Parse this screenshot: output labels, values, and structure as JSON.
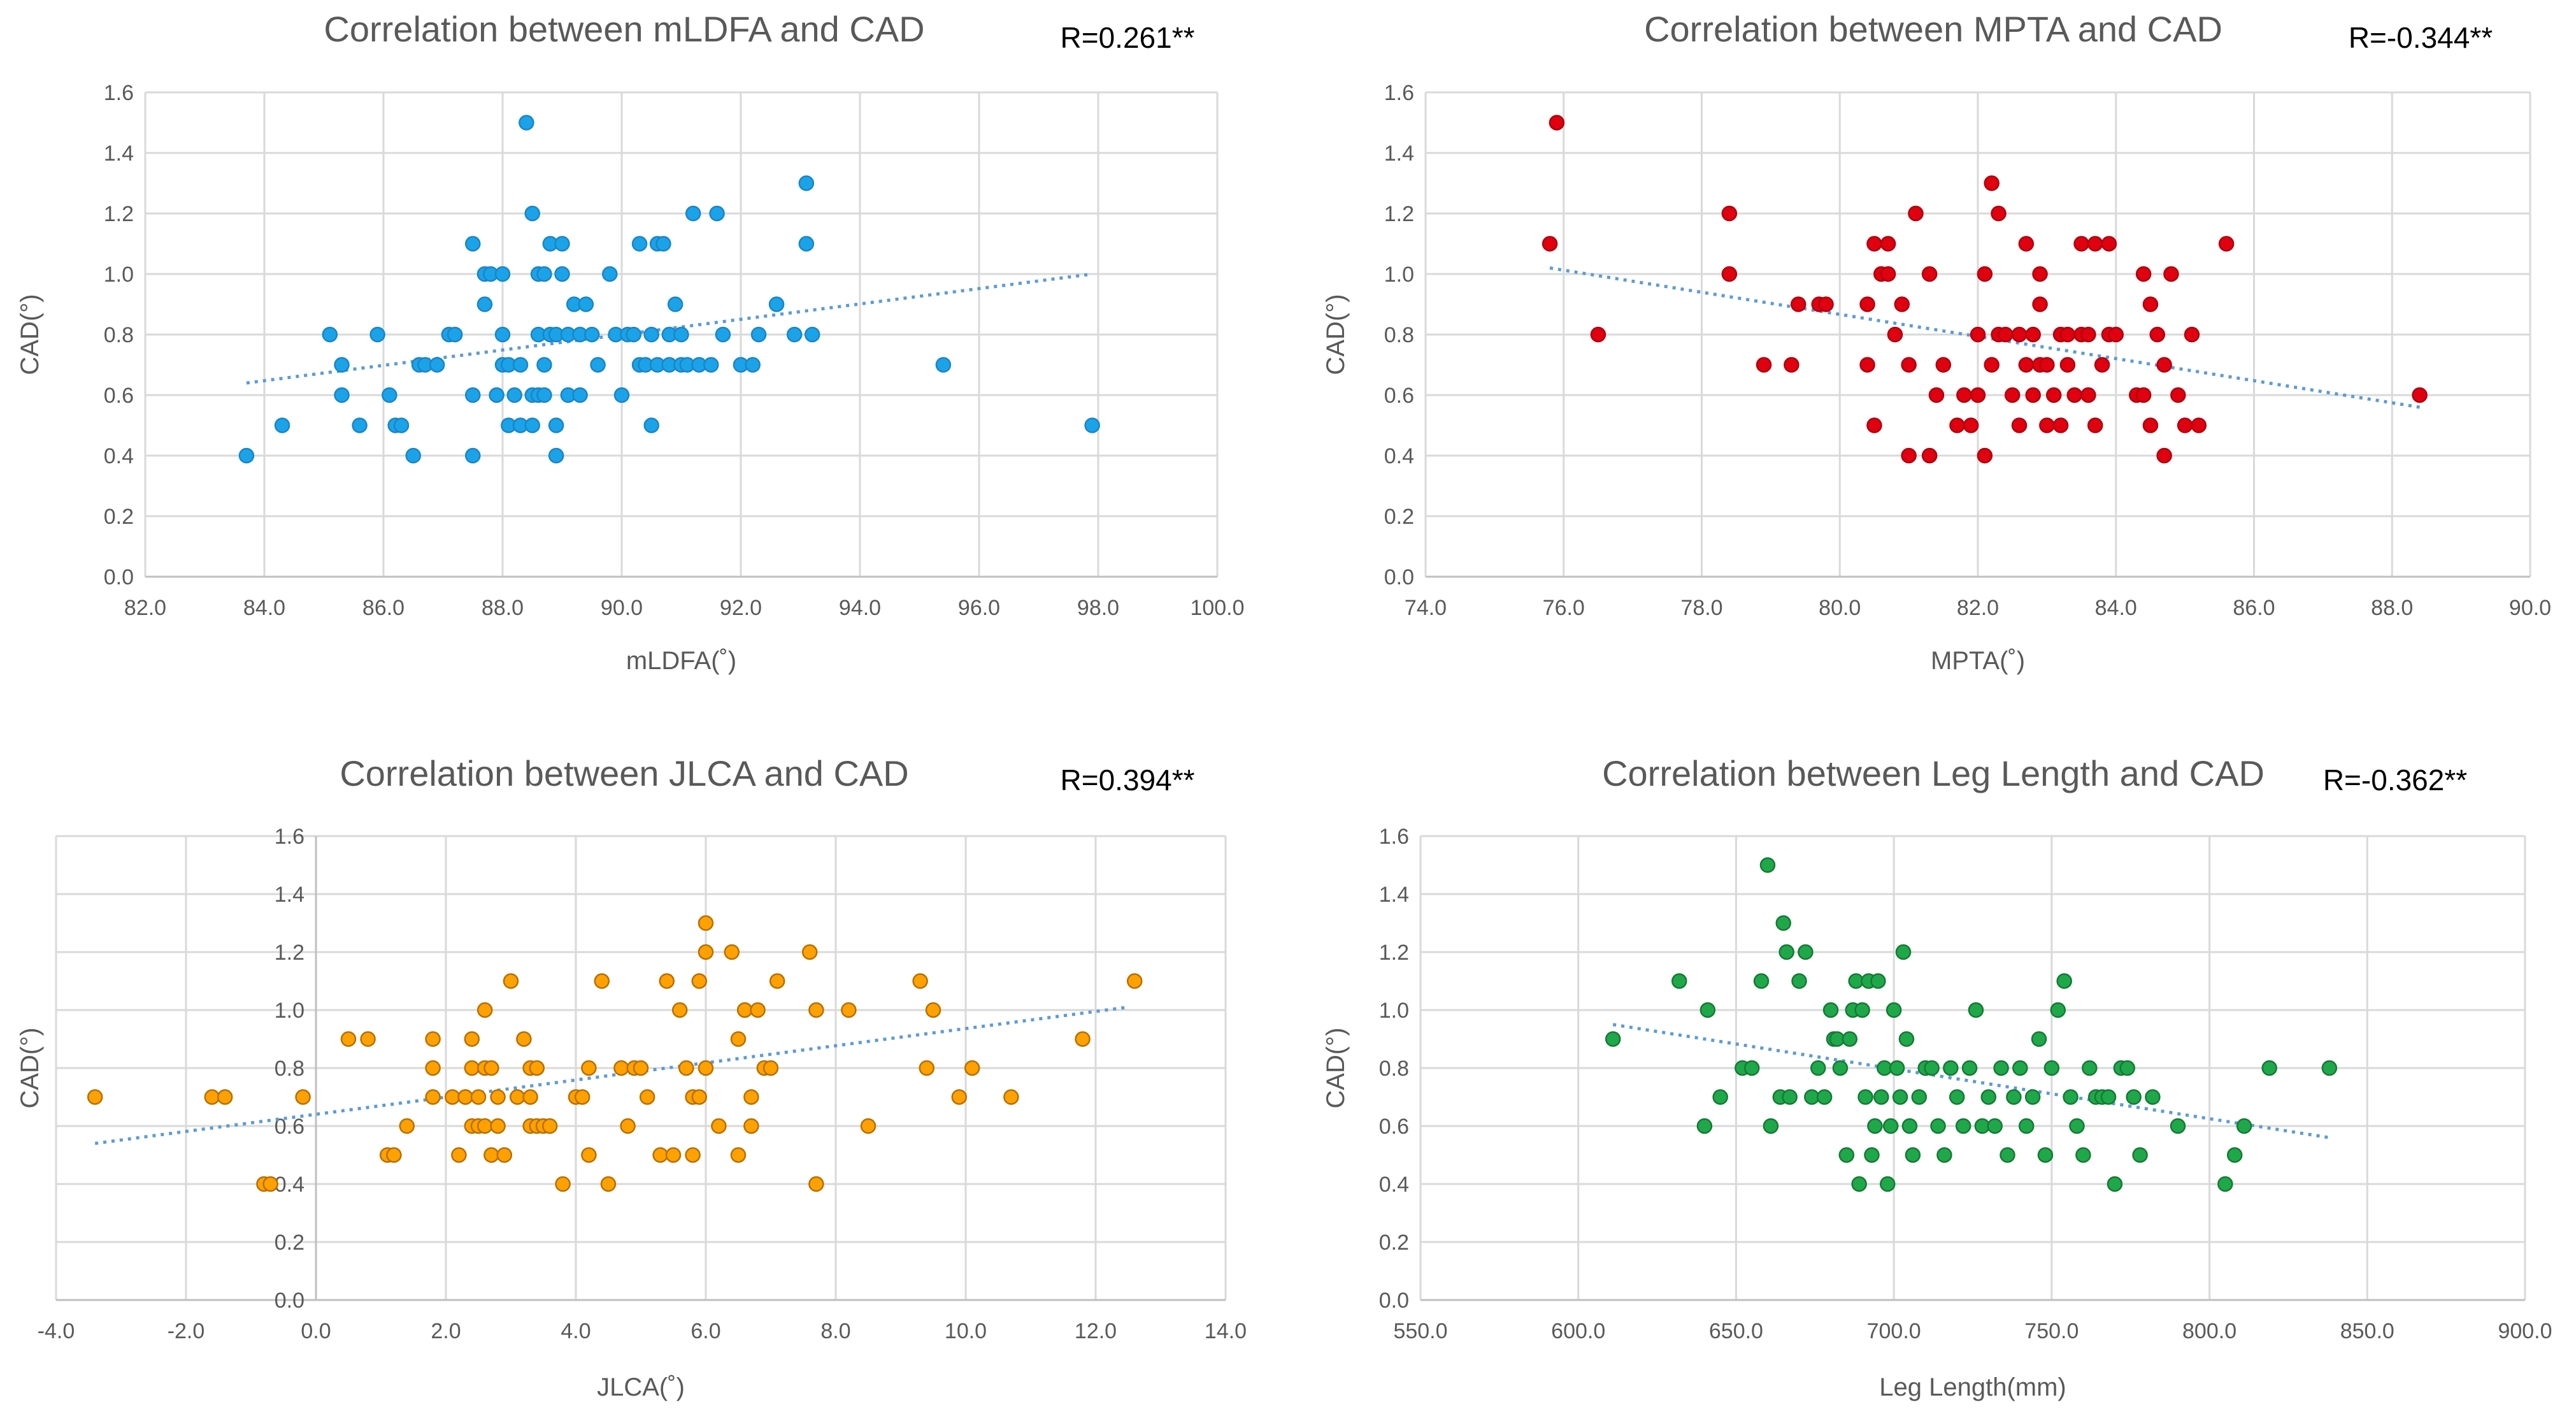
{
  "chart_data": [
    {
      "type": "scatter",
      "title": "Correlation between mLDFA and CAD",
      "annotation": "R=0.261**",
      "xlabel": "mLDFA(˚)",
      "ylabel": "CAD(°)",
      "xlim": [
        82,
        100
      ],
      "xstep": 2,
      "ylim": [
        0,
        1.6
      ],
      "ystep": 0.2,
      "xticks": [
        "82.0",
        "84.0",
        "86.0",
        "88.0",
        "90.0",
        "92.0",
        "94.0",
        "96.0",
        "98.0",
        "100.0"
      ],
      "yticks": [
        "0.0",
        "0.2",
        "0.4",
        "0.6",
        "0.8",
        "1.0",
        "1.2",
        "1.4",
        "1.6"
      ],
      "color": "#1aa3e8",
      "edge": "#1a85c8",
      "trendline": [
        [
          83.7,
          0.64
        ],
        [
          97.9,
          1.0
        ]
      ],
      "x": [
        83.7,
        84.3,
        85.1,
        85.3,
        85.3,
        85.6,
        85.9,
        86.1,
        86.2,
        86.3,
        86.5,
        86.6,
        86.7,
        86.9,
        87.1,
        87.2,
        87.5,
        87.5,
        87.5,
        87.7,
        87.7,
        87.8,
        87.9,
        88.0,
        88.0,
        88.0,
        88.1,
        88.1,
        88.2,
        88.3,
        88.3,
        88.4,
        88.5,
        88.5,
        88.5,
        88.6,
        88.6,
        88.6,
        88.7,
        88.7,
        88.7,
        88.8,
        88.8,
        88.9,
        88.9,
        88.9,
        89.0,
        89.0,
        89.1,
        89.1,
        89.2,
        89.3,
        89.3,
        89.4,
        89.5,
        89.6,
        89.8,
        89.9,
        90.0,
        90.1,
        90.2,
        90.3,
        90.3,
        90.4,
        90.5,
        90.5,
        90.6,
        90.6,
        90.7,
        90.8,
        90.8,
        90.9,
        91.0,
        91.0,
        91.1,
        91.2,
        91.3,
        91.5,
        91.6,
        91.7,
        92.0,
        92.2,
        92.3,
        92.6,
        92.9,
        93.1,
        93.1,
        93.2,
        95.4,
        97.9
      ],
      "y": [
        0.4,
        0.5,
        0.8,
        0.7,
        0.6,
        0.5,
        0.8,
        0.6,
        0.5,
        0.5,
        0.4,
        0.7,
        0.7,
        0.7,
        0.8,
        0.8,
        1.1,
        0.6,
        0.4,
        1.0,
        0.9,
        1.0,
        0.6,
        0.8,
        1.0,
        0.7,
        0.5,
        0.7,
        0.6,
        0.7,
        0.5,
        1.5,
        1.2,
        0.6,
        0.5,
        1.0,
        0.8,
        0.6,
        1.0,
        0.7,
        0.6,
        1.1,
        0.8,
        0.5,
        0.4,
        0.8,
        1.1,
        1.0,
        0.8,
        0.6,
        0.9,
        0.8,
        0.6,
        0.9,
        0.8,
        0.7,
        1.0,
        0.8,
        0.6,
        0.8,
        0.8,
        1.1,
        0.7,
        0.7,
        0.8,
        0.5,
        1.1,
        0.7,
        1.1,
        0.7,
        0.8,
        0.9,
        0.7,
        0.8,
        0.7,
        1.2,
        0.7,
        0.7,
        1.2,
        0.8,
        0.7,
        0.7,
        0.8,
        0.9,
        0.8,
        1.3,
        1.1,
        0.8,
        0.7,
        0.5
      ]
    },
    {
      "type": "scatter",
      "title": "Correlation between MPTA and CAD",
      "annotation": "R=-0.344**",
      "xlabel": "MPTA(˚)",
      "ylabel": "CAD(°)",
      "xlim": [
        74,
        90
      ],
      "xstep": 2,
      "ylim": [
        0,
        1.6
      ],
      "ystep": 0.2,
      "xticks": [
        "74.0",
        "76.0",
        "78.0",
        "80.0",
        "82.0",
        "84.0",
        "86.0",
        "88.0",
        "90.0"
      ],
      "yticks": [
        "0.0",
        "0.2",
        "0.4",
        "0.6",
        "0.8",
        "1.0",
        "1.2",
        "1.4",
        "1.6"
      ],
      "color": "#e0000f",
      "edge": "#b0000c",
      "trendline": [
        [
          75.8,
          1.02
        ],
        [
          88.4,
          0.56
        ]
      ],
      "x": [
        75.8,
        75.9,
        76.5,
        78.4,
        78.4,
        78.9,
        79.3,
        79.4,
        79.7,
        79.8,
        80.4,
        80.4,
        80.5,
        80.5,
        80.6,
        80.7,
        80.7,
        80.8,
        80.9,
        81.0,
        81.0,
        81.1,
        81.3,
        81.3,
        81.4,
        81.5,
        81.7,
        81.8,
        81.9,
        82.0,
        82.0,
        82.1,
        82.1,
        82.2,
        82.2,
        82.3,
        82.3,
        82.4,
        82.5,
        82.6,
        82.6,
        82.7,
        82.7,
        82.8,
        82.8,
        82.9,
        82.9,
        82.9,
        83.0,
        83.0,
        83.1,
        83.2,
        83.2,
        83.3,
        83.3,
        83.4,
        83.5,
        83.5,
        83.6,
        83.6,
        83.7,
        83.7,
        83.8,
        83.9,
        83.9,
        84.0,
        84.3,
        84.4,
        84.4,
        84.5,
        84.5,
        84.6,
        84.7,
        84.7,
        84.8,
        84.9,
        85.0,
        85.1,
        85.2,
        85.6,
        88.4
      ],
      "y": [
        1.1,
        1.5,
        0.8,
        1.2,
        1.0,
        0.7,
        0.7,
        0.9,
        0.9,
        0.9,
        0.9,
        0.7,
        1.1,
        0.5,
        1.0,
        1.1,
        1.0,
        0.8,
        0.9,
        0.4,
        0.7,
        1.2,
        0.4,
        1.0,
        0.6,
        0.7,
        0.5,
        0.6,
        0.5,
        0.6,
        0.8,
        0.4,
        1.0,
        1.3,
        0.7,
        0.8,
        1.2,
        0.8,
        0.6,
        0.8,
        0.5,
        0.7,
        1.1,
        0.8,
        0.6,
        0.7,
        1.0,
        0.9,
        0.7,
        0.5,
        0.6,
        0.8,
        0.5,
        0.7,
        0.8,
        0.6,
        0.8,
        1.1,
        0.6,
        0.8,
        1.1,
        0.5,
        0.7,
        0.8,
        1.1,
        0.8,
        0.6,
        0.6,
        1.0,
        0.9,
        0.5,
        0.8,
        0.4,
        0.7,
        1.0,
        0.6,
        0.5,
        0.8,
        0.5,
        1.1,
        0.6
      ]
    },
    {
      "type": "scatter",
      "title": "Correlation between JLCA and CAD",
      "annotation": "R=0.394**",
      "xlabel": "JLCA(˚)",
      "ylabel": "CAD(°)",
      "xlim": [
        -4,
        14
      ],
      "xstep": 2,
      "ylim": [
        0,
        1.6
      ],
      "ystep": 0.2,
      "xticks": [
        "-4.0",
        "-2.0",
        "0.0",
        "2.0",
        "4.0",
        "6.0",
        "8.0",
        "10.0",
        "12.0",
        "14.0"
      ],
      "yticks": [
        "0.0",
        "0.2",
        "0.4",
        "0.6",
        "0.8",
        "1.0",
        "1.2",
        "1.4",
        "1.6"
      ],
      "color": "#ffa100",
      "edge": "#b86f00",
      "trendline": [
        [
          -3.4,
          0.54
        ],
        [
          12.5,
          1.01
        ]
      ],
      "x": [
        -3.4,
        -1.6,
        -1.4,
        -0.8,
        -0.7,
        -0.2,
        0.5,
        0.8,
        1.1,
        1.2,
        1.4,
        1.8,
        1.8,
        1.8,
        2.1,
        2.2,
        2.3,
        2.3,
        2.4,
        2.4,
        2.4,
        2.5,
        2.5,
        2.6,
        2.6,
        2.6,
        2.7,
        2.7,
        2.8,
        2.8,
        2.9,
        3.0,
        3.1,
        3.2,
        3.3,
        3.3,
        3.3,
        3.4,
        3.4,
        3.5,
        3.6,
        3.8,
        4.0,
        4.1,
        4.2,
        4.2,
        4.4,
        4.5,
        4.7,
        4.8,
        4.9,
        5.0,
        5.1,
        5.3,
        5.4,
        5.5,
        5.6,
        5.7,
        5.8,
        5.8,
        5.9,
        5.9,
        6.0,
        6.0,
        6.0,
        6.2,
        6.4,
        6.5,
        6.5,
        6.6,
        6.6,
        6.7,
        6.7,
        6.8,
        6.9,
        7.0,
        7.1,
        7.6,
        7.7,
        7.7,
        8.2,
        8.5,
        9.3,
        9.4,
        9.5,
        9.9,
        10.1,
        10.7,
        11.8,
        12.6
      ],
      "y": [
        0.7,
        0.7,
        0.7,
        0.4,
        0.4,
        0.7,
        0.9,
        0.9,
        0.5,
        0.5,
        0.6,
        0.9,
        0.8,
        0.7,
        0.7,
        0.5,
        0.7,
        0.7,
        0.8,
        0.9,
        0.6,
        0.7,
        0.6,
        1.0,
        0.8,
        0.6,
        0.8,
        0.5,
        0.7,
        0.6,
        0.5,
        1.1,
        0.7,
        0.9,
        0.7,
        0.6,
        0.8,
        0.8,
        0.6,
        0.6,
        0.6,
        0.4,
        0.7,
        0.7,
        0.5,
        0.8,
        1.1,
        0.4,
        0.8,
        0.6,
        0.8,
        0.8,
        0.7,
        0.5,
        1.1,
        0.5,
        1.0,
        0.8,
        0.7,
        0.5,
        1.1,
        0.7,
        1.3,
        1.2,
        0.8,
        0.6,
        1.2,
        0.5,
        0.9,
        1.0,
        1.0,
        0.7,
        0.6,
        1.0,
        0.8,
        0.8,
        1.1,
        1.2,
        1.0,
        0.4,
        1.0,
        0.6,
        1.1,
        0.8,
        1.0,
        0.7,
        0.8,
        0.7,
        0.9,
        1.1
      ]
    },
    {
      "type": "scatter",
      "title": "Correlation between Leg Length and CAD",
      "annotation": "R=-0.362**",
      "xlabel": "Leg Length(mm)",
      "ylabel": "CAD(°)",
      "xlim": [
        550,
        900
      ],
      "xstep": 50,
      "ylim": [
        0,
        1.6
      ],
      "ystep": 0.2,
      "xticks": [
        "550.0",
        "600.0",
        "650.0",
        "700.0",
        "750.0",
        "800.0",
        "850.0",
        "900.0"
      ],
      "yticks": [
        "0.0",
        "0.2",
        "0.4",
        "0.6",
        "0.8",
        "1.0",
        "1.2",
        "1.4",
        "1.6"
      ],
      "color": "#1fa84a",
      "edge": "#157a34",
      "trendline": [
        [
          611,
          0.95
        ],
        [
          838,
          0.56
        ]
      ],
      "x": [
        611,
        632,
        640,
        641,
        645,
        652,
        655,
        658,
        660,
        661,
        664,
        665,
        666,
        667,
        670,
        672,
        674,
        676,
        678,
        680,
        681,
        682,
        683,
        685,
        686,
        687,
        688,
        689,
        690,
        691,
        692,
        693,
        694,
        695,
        696,
        697,
        698,
        699,
        700,
        701,
        702,
        703,
        704,
        705,
        706,
        708,
        710,
        712,
        714,
        716,
        718,
        720,
        722,
        724,
        726,
        728,
        730,
        732,
        734,
        736,
        738,
        740,
        742,
        744,
        746,
        748,
        750,
        752,
        754,
        756,
        758,
        760,
        762,
        764,
        766,
        768,
        770,
        772,
        774,
        776,
        778,
        782,
        790,
        805,
        808,
        811,
        819,
        838
      ],
      "y": [
        0.9,
        1.1,
        0.6,
        1.0,
        0.7,
        0.8,
        0.8,
        1.1,
        1.5,
        0.6,
        0.7,
        1.3,
        1.2,
        0.7,
        1.1,
        1.2,
        0.7,
        0.8,
        0.7,
        1.0,
        0.9,
        0.9,
        0.8,
        0.5,
        0.9,
        1.0,
        1.1,
        0.4,
        1.0,
        0.7,
        1.1,
        0.5,
        0.6,
        1.1,
        0.7,
        0.8,
        0.4,
        0.6,
        1.0,
        0.8,
        0.7,
        1.2,
        0.9,
        0.6,
        0.5,
        0.7,
        0.8,
        0.8,
        0.6,
        0.5,
        0.8,
        0.7,
        0.6,
        0.8,
        1.0,
        0.6,
        0.7,
        0.6,
        0.8,
        0.5,
        0.7,
        0.8,
        0.6,
        0.7,
        0.9,
        0.5,
        0.8,
        1.0,
        1.1,
        0.7,
        0.6,
        0.5,
        0.8,
        0.7,
        0.7,
        0.7,
        0.4,
        0.8,
        0.8,
        0.7,
        0.5,
        0.7,
        0.6,
        0.4,
        0.5,
        0.6,
        0.8,
        0.8
      ]
    }
  ]
}
